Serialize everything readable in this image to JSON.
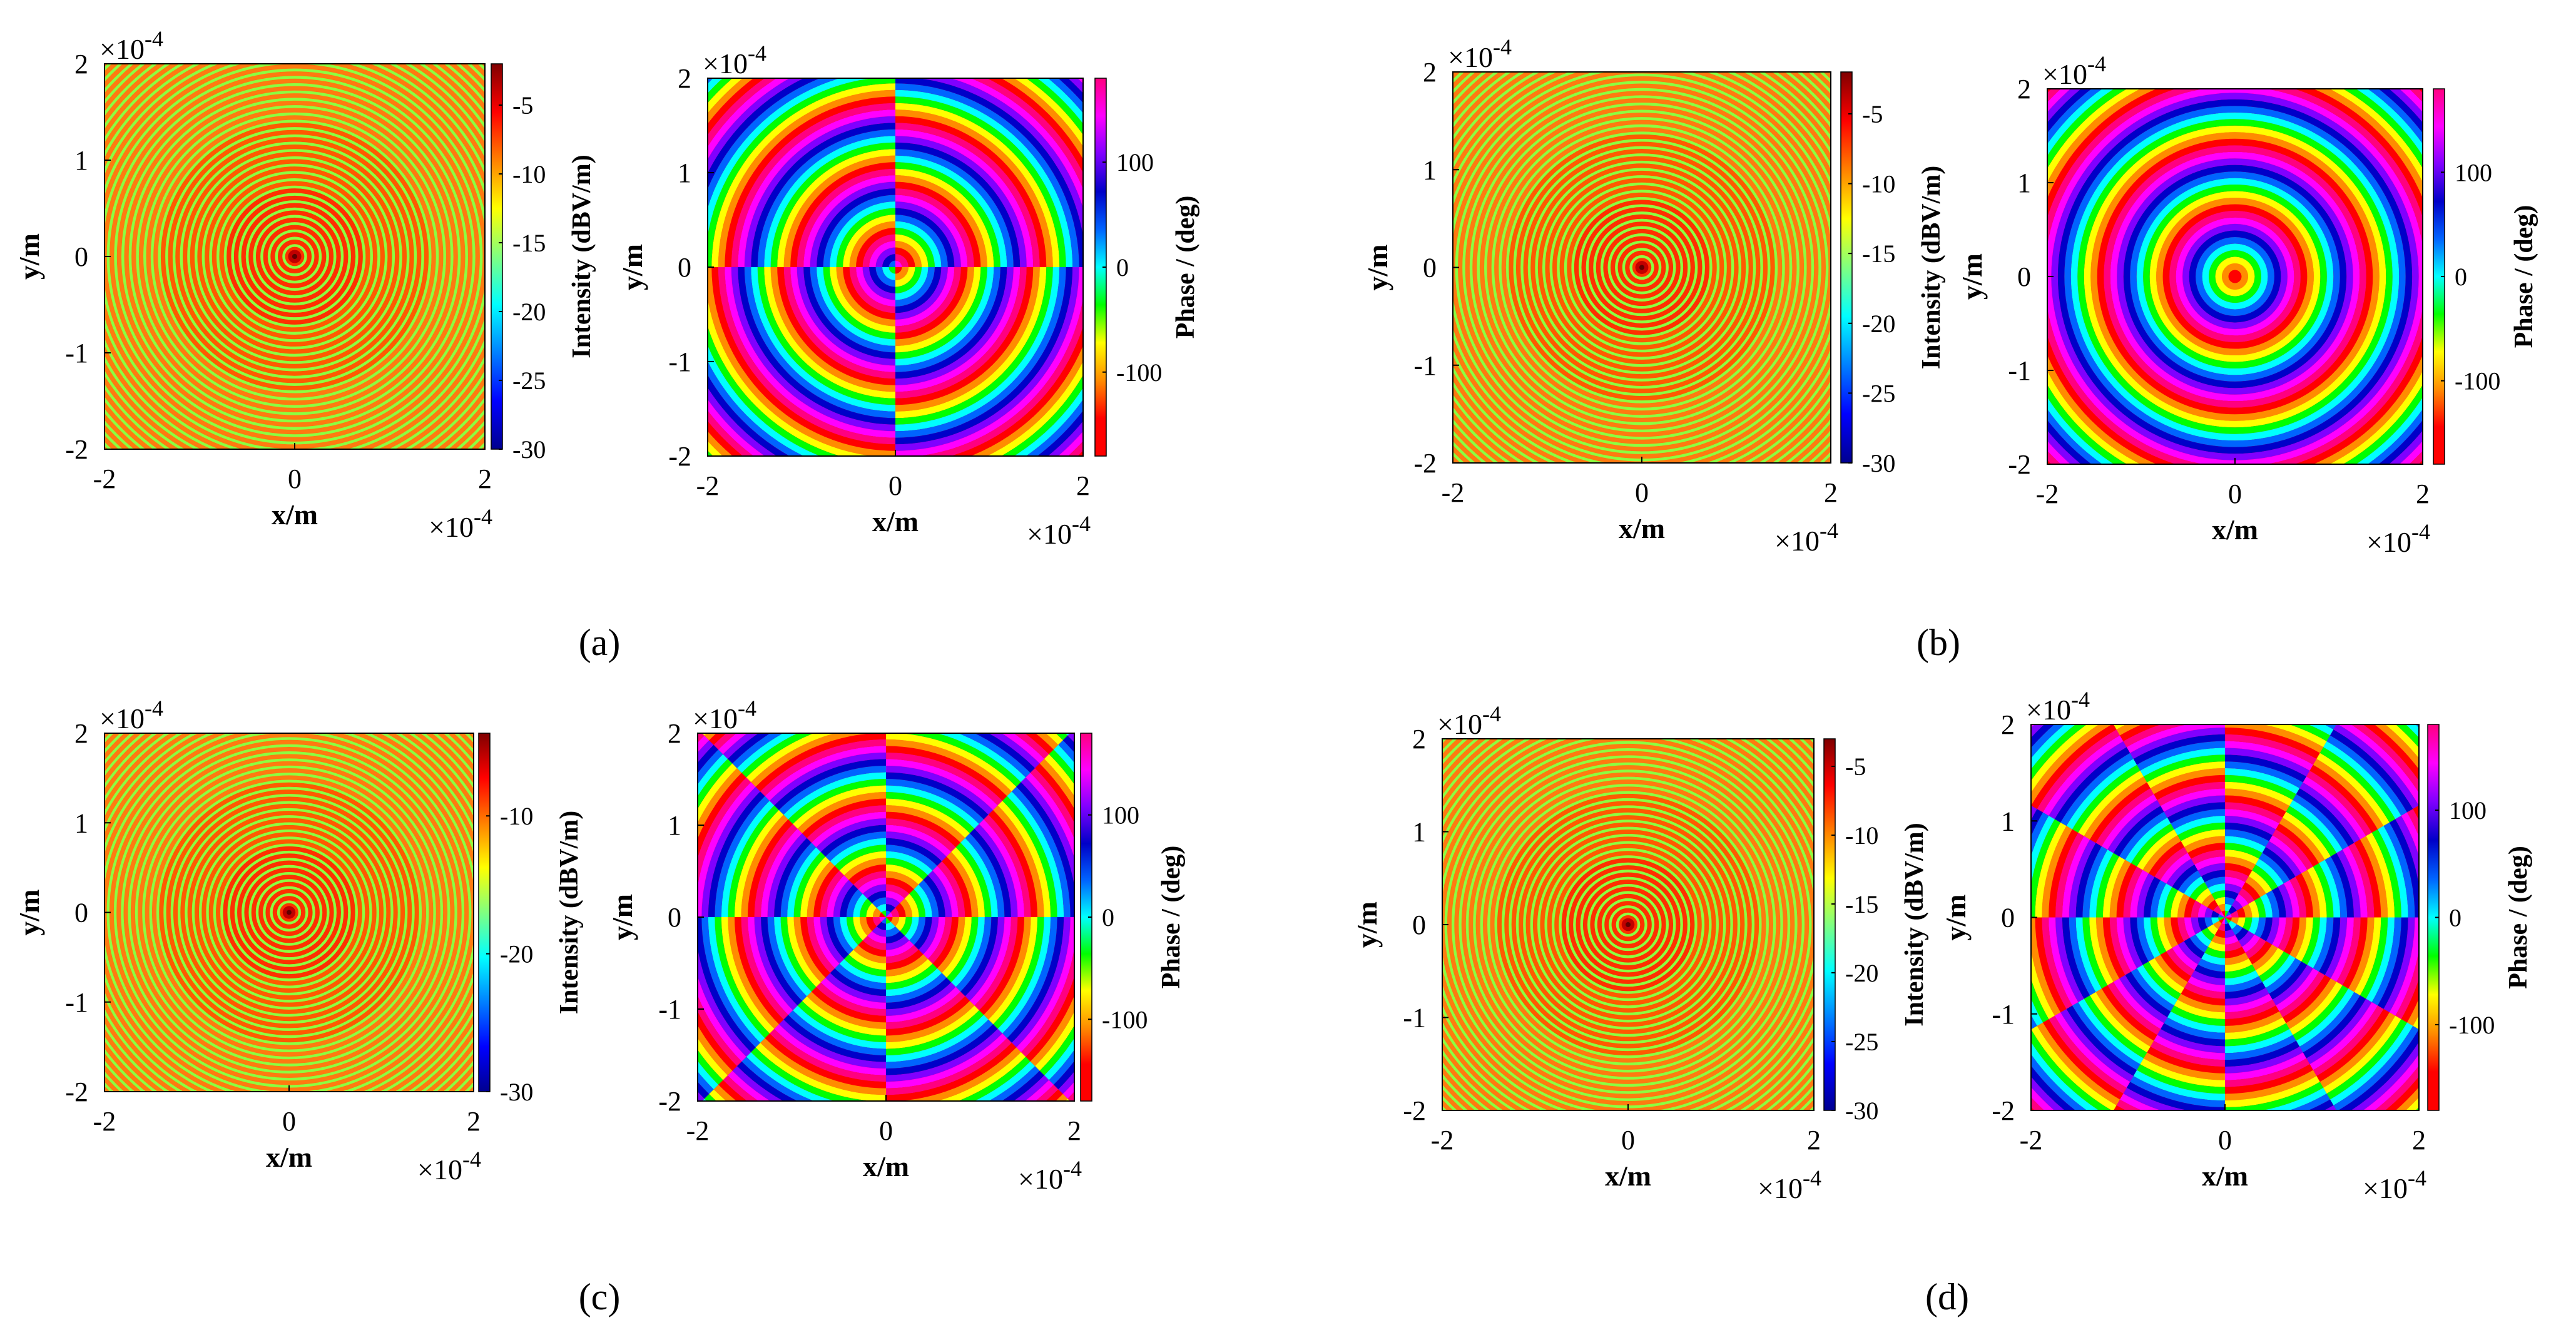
{
  "figure": {
    "subfigure_labels": [
      "(a)",
      "(b)",
      "(c)",
      "(d)"
    ]
  },
  "colors": {
    "intensity_ring_bright": "#ff5a00",
    "intensity_ring_dim": "#8cff40",
    "phase_colormap": [
      "#ff0000",
      "#ff8c00",
      "#ffff00",
      "#00ff00",
      "#00ffff",
      "#0064ff",
      "#0000c8",
      "#8000ff",
      "#ff00ff",
      "#ff0080"
    ],
    "jet_colormap": [
      "#00008f",
      "#0000ff",
      "#0080ff",
      "#00ffff",
      "#80ff80",
      "#ffff00",
      "#ff8000",
      "#ff0000",
      "#800000"
    ]
  },
  "chart_data": [
    {
      "id": "a-intensity",
      "panel": "(a)",
      "type": "heatmap",
      "quantity": "intensity",
      "title": "",
      "xlabel": "x/m",
      "ylabel": "y/m",
      "xlim": [
        -2,
        2
      ],
      "ylim": [
        -2,
        2
      ],
      "xticks": [
        "-2",
        "0",
        "2"
      ],
      "yticks": [
        "2",
        "1",
        "0",
        "-1",
        "-2"
      ],
      "x_exponent": "×10",
      "x_exponent_power": "-4",
      "y_exponent": "×10",
      "y_exponent_power": "-4",
      "colorbar": {
        "label": "Intensity (dBV/m)",
        "range": [
          -30,
          -2
        ],
        "ticks": [
          "-5",
          "-10",
          "-15",
          "-20",
          "-25",
          "-30"
        ],
        "colormap": "jet"
      },
      "ring_count": 26,
      "vortex_charge": 0
    },
    {
      "id": "a-phase",
      "panel": "(a)",
      "type": "heatmap",
      "quantity": "phase",
      "title": "",
      "xlabel": "x/m",
      "ylabel": "y/m",
      "xlim": [
        -2,
        2
      ],
      "ylim": [
        -2,
        2
      ],
      "xticks": [
        "-2",
        "0",
        "2"
      ],
      "yticks": [
        "2",
        "1",
        "0",
        "-1",
        "-2"
      ],
      "x_exponent": "×10",
      "x_exponent_power": "-4",
      "y_exponent": "×10",
      "y_exponent_power": "-4",
      "colorbar": {
        "label": "Phase / (deg)",
        "range": [
          -180,
          180
        ],
        "ticks": [
          "100",
          "0",
          "-100"
        ],
        "colormap": "phase"
      },
      "ring_count": 13,
      "vortex_charge": 1
    },
    {
      "id": "b-intensity",
      "panel": "(b)",
      "type": "heatmap",
      "quantity": "intensity",
      "title": "",
      "xlabel": "x/m",
      "ylabel": "y/m",
      "xlim": [
        -2,
        2
      ],
      "ylim": [
        -2,
        2
      ],
      "xticks": [
        "-2",
        "0",
        "2"
      ],
      "yticks": [
        "2",
        "1",
        "0",
        "-1",
        "-2"
      ],
      "x_exponent": "×10",
      "x_exponent_power": "-4",
      "y_exponent": "×10",
      "y_exponent_power": "-4",
      "colorbar": {
        "label": "Intensity (dBV/m)",
        "range": [
          -30,
          -2
        ],
        "ticks": [
          "-5",
          "-10",
          "-15",
          "-20",
          "-25",
          "-30"
        ],
        "colormap": "jet"
      },
      "ring_count": 26,
      "vortex_charge": 0
    },
    {
      "id": "b-phase",
      "panel": "(b)",
      "type": "heatmap",
      "quantity": "phase",
      "title": "",
      "xlabel": "x/m",
      "ylabel": "y/m",
      "xlim": [
        -2,
        2
      ],
      "ylim": [
        -2,
        2
      ],
      "xticks": [
        "-2",
        "0",
        "2"
      ],
      "yticks": [
        "2",
        "1",
        "0",
        "-1",
        "-2"
      ],
      "x_exponent": "×10",
      "x_exponent_power": "-4",
      "y_exponent": "×10",
      "y_exponent_power": "-4",
      "colorbar": {
        "label": "Phase / (deg)",
        "range": [
          -180,
          180
        ],
        "ticks": [
          "100",
          "0",
          "-100"
        ],
        "colormap": "phase"
      },
      "ring_count": 13,
      "vortex_charge": 0
    },
    {
      "id": "c-intensity",
      "panel": "(c)",
      "type": "heatmap",
      "quantity": "intensity",
      "title": "",
      "xlabel": "x/m",
      "ylabel": "y/m",
      "xlim": [
        -2,
        2
      ],
      "ylim": [
        -2,
        2
      ],
      "xticks": [
        "-2",
        "0",
        "2"
      ],
      "yticks": [
        "2",
        "1",
        "0",
        "-1",
        "-2"
      ],
      "x_exponent": "×10",
      "x_exponent_power": "-4",
      "y_exponent": "×10",
      "y_exponent_power": "-4",
      "colorbar": {
        "label": "Intensity (dBV/m)",
        "range": [
          -30,
          -4
        ],
        "ticks": [
          "-10",
          "-20",
          "-30"
        ],
        "colormap": "jet"
      },
      "ring_count": 26,
      "vortex_charge": 0
    },
    {
      "id": "c-phase",
      "panel": "(c)",
      "type": "heatmap",
      "quantity": "phase",
      "title": "",
      "xlabel": "x/m",
      "ylabel": "y/m",
      "xlim": [
        -2,
        2
      ],
      "ylim": [
        -2,
        2
      ],
      "xticks": [
        "-2",
        "0",
        "2"
      ],
      "yticks": [
        "2",
        "1",
        "0",
        "-1",
        "-2"
      ],
      "x_exponent": "×10",
      "x_exponent_power": "-4",
      "y_exponent": "×10",
      "y_exponent_power": "-4",
      "colorbar": {
        "label": "Phase / (deg)",
        "range": [
          -180,
          180
        ],
        "ticks": [
          "100",
          "0",
          "-100"
        ],
        "colormap": "phase"
      },
      "ring_count": 13,
      "vortex_charge": 2
    },
    {
      "id": "d-intensity",
      "panel": "(d)",
      "type": "heatmap",
      "quantity": "intensity",
      "title": "",
      "xlabel": "x/m",
      "ylabel": "y/m",
      "xlim": [
        -2,
        2
      ],
      "ylim": [
        -2,
        2
      ],
      "xticks": [
        "-2",
        "0",
        "2"
      ],
      "yticks": [
        "2",
        "1",
        "0",
        "-1",
        "-2"
      ],
      "x_exponent": "×10",
      "x_exponent_power": "-4",
      "y_exponent": "×10",
      "y_exponent_power": "-4",
      "colorbar": {
        "label": "Intensity (dBV/m)",
        "range": [
          -30,
          -3
        ],
        "ticks": [
          "-5",
          "-10",
          "-15",
          "-20",
          "-25",
          "-30"
        ],
        "colormap": "jet"
      },
      "ring_count": 26,
      "vortex_charge": 0
    },
    {
      "id": "d-phase",
      "panel": "(d)",
      "type": "heatmap",
      "quantity": "phase",
      "title": "",
      "xlabel": "x/m",
      "ylabel": "y/m",
      "xlim": [
        -2,
        2
      ],
      "ylim": [
        -2,
        2
      ],
      "xticks": [
        "-2",
        "0",
        "2"
      ],
      "yticks": [
        "2",
        "1",
        "0",
        "-1",
        "-2"
      ],
      "x_exponent": "×10",
      "x_exponent_power": "-4",
      "y_exponent": "×10",
      "y_exponent_power": "-4",
      "colorbar": {
        "label": "Phase / (deg)",
        "range": [
          -180,
          180
        ],
        "ticks": [
          "100",
          "0",
          "-100"
        ],
        "colormap": "phase"
      },
      "ring_count": 13,
      "vortex_charge": 3
    }
  ]
}
